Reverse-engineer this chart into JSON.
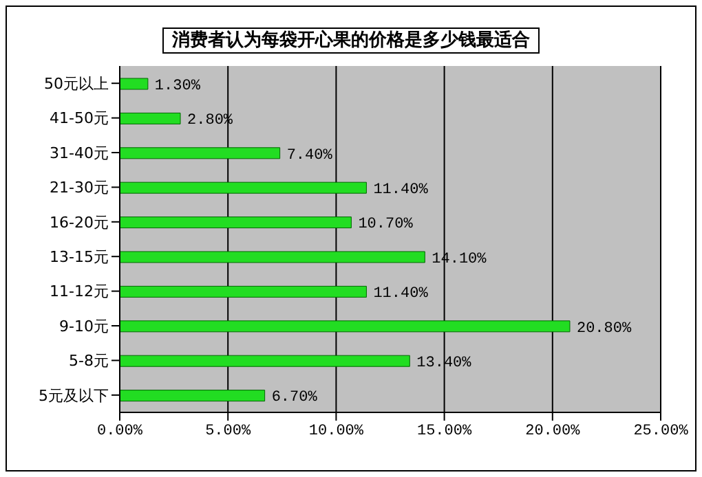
{
  "chart_data": {
    "type": "bar",
    "orientation": "horizontal",
    "title": "消费者认为每袋开心果的价格是多少钱最适合",
    "categories": [
      "50元以上",
      "41-50元",
      "31-40元",
      "21-30元",
      "16-20元",
      "13-15元",
      "11-12元",
      "9-10元",
      "5-8元",
      "5元及以下"
    ],
    "values": [
      1.3,
      2.8,
      7.4,
      11.4,
      10.7,
      14.1,
      11.4,
      20.8,
      13.4,
      6.7
    ],
    "value_labels": [
      "1.30%",
      "2.80%",
      "7.40%",
      "11.40%",
      "10.70%",
      "14.10%",
      "11.40%",
      "20.80%",
      "13.40%",
      "6.70%"
    ],
    "color": "#22dd22",
    "xlim": [
      0,
      25
    ],
    "xticks": [
      {
        "value": 0,
        "label": "0.00%"
      },
      {
        "value": 5,
        "label": "5.00%"
      },
      {
        "value": 10,
        "label": "10.00%"
      },
      {
        "value": 15,
        "label": "15.00%"
      },
      {
        "value": 20,
        "label": "20.00%"
      },
      {
        "value": 25,
        "label": "25.00%"
      }
    ],
    "grid": "x"
  }
}
